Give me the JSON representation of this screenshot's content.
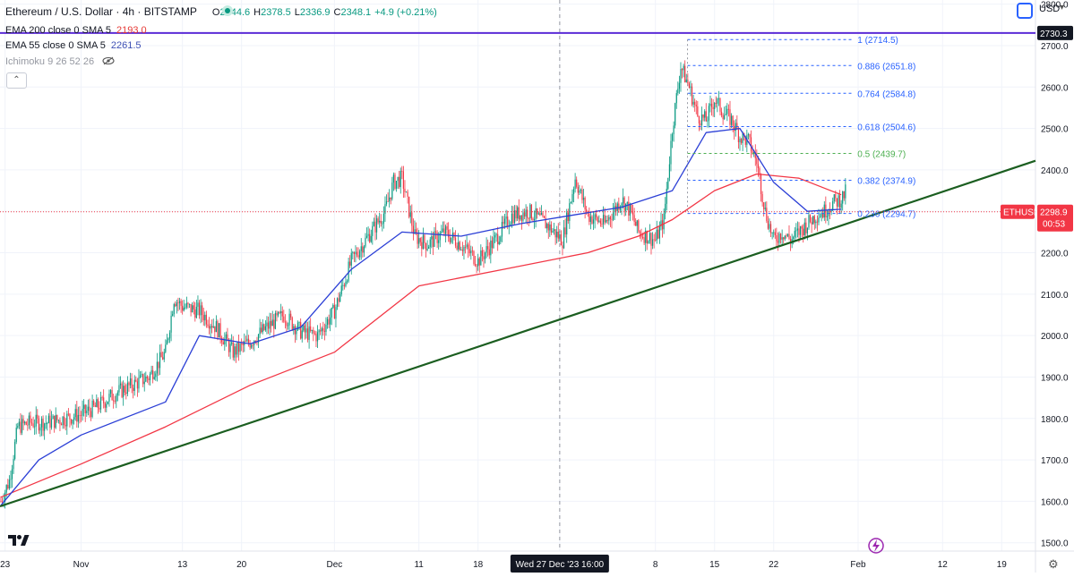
{
  "header": {
    "title": "Ethereum / U.S. Dollar · 4h · BITSTAMP",
    "ohlc": [
      {
        "k": "O",
        "v": "2344.6"
      },
      {
        "k": "H",
        "v": "2378.5"
      },
      {
        "k": "L",
        "v": "2336.9"
      },
      {
        "k": "C",
        "v": "2348.1"
      },
      {
        "k": "",
        "v": "+4.9 (+0.21%)"
      }
    ],
    "ema200_label": "EMA 200 close 0 SMA 5",
    "ema200_value": "2193.0",
    "ema55_label": "EMA 55 close 0 SMA 5",
    "ema55_value": "2261.5",
    "ichimoku_label": "Ichimoku 9 26 52 26",
    "currency": "USD"
  },
  "colors": {
    "up": "#089981",
    "down": "#f23645",
    "ema200": "#f23645",
    "ema55": "#2b3fd6",
    "trendline": "#1b5e20",
    "resistance": "#5b2bd6",
    "fib": "#2962ff",
    "fib_half": "#4caf50"
  },
  "chart_data": {
    "type": "candlestick",
    "symbol": "ETHUSD",
    "interval": "4h",
    "exchange": "BITSTAMP",
    "ylim": [
      1480,
      2810
    ],
    "y_ticks": [
      1500,
      1600,
      1700,
      1800,
      1900,
      2000,
      2100,
      2200,
      2300,
      2400,
      2500,
      2600,
      2700,
      2800
    ],
    "x_ticks": [
      "23",
      "Nov",
      "13",
      "20",
      "Dec",
      "11",
      "18",
      "Wed 27 Dec '23  16:00",
      "8",
      "15",
      "22",
      "Feb",
      "12",
      "19"
    ],
    "x_tick_days": [
      -9,
      0,
      12,
      19,
      30,
      40,
      47,
      56.67,
      68,
      75,
      82,
      92,
      102,
      109
    ],
    "x_range_days": [
      -9.6,
      113
    ],
    "crosshair_day": 56.67,
    "close_path": [
      [
        -9.5,
        1600
      ],
      [
        -8.5,
        1650
      ],
      [
        -7.5,
        1780
      ],
      [
        -6,
        1790
      ],
      [
        -4,
        1790
      ],
      [
        -2,
        1800
      ],
      [
        0,
        1810
      ],
      [
        2,
        1830
      ],
      [
        4,
        1860
      ],
      [
        6,
        1880
      ],
      [
        8,
        1900
      ],
      [
        10,
        1960
      ],
      [
        11,
        2090
      ],
      [
        12,
        2070
      ],
      [
        14,
        2060
      ],
      [
        16,
        2020
      ],
      [
        18,
        1960
      ],
      [
        20,
        1985
      ],
      [
        22,
        2020
      ],
      [
        24,
        2050
      ],
      [
        26,
        2010
      ],
      [
        28,
        2000
      ],
      [
        30,
        2060
      ],
      [
        32,
        2180
      ],
      [
        34,
        2240
      ],
      [
        36,
        2300
      ],
      [
        37,
        2370
      ],
      [
        38,
        2380
      ],
      [
        39.5,
        2240
      ],
      [
        41,
        2220
      ],
      [
        43,
        2250
      ],
      [
        45,
        2220
      ],
      [
        47,
        2180
      ],
      [
        49,
        2230
      ],
      [
        51,
        2290
      ],
      [
        53,
        2300
      ],
      [
        55,
        2270
      ],
      [
        57,
        2230
      ],
      [
        58.5,
        2380
      ],
      [
        60,
        2290
      ],
      [
        62,
        2270
      ],
      [
        64,
        2330
      ],
      [
        65,
        2300
      ],
      [
        66,
        2250
      ],
      [
        68,
        2230
      ],
      [
        69,
        2280
      ],
      [
        70,
        2500
      ],
      [
        71,
        2650
      ],
      [
        72,
        2600
      ],
      [
        73,
        2530
      ],
      [
        74,
        2520
      ],
      [
        75,
        2570
      ],
      [
        76,
        2540
      ],
      [
        77,
        2520
      ],
      [
        78,
        2480
      ],
      [
        79,
        2470
      ],
      [
        80,
        2420
      ],
      [
        81,
        2300
      ],
      [
        82,
        2230
      ],
      [
        83,
        2250
      ],
      [
        84,
        2230
      ],
      [
        85,
        2250
      ],
      [
        86,
        2270
      ],
      [
        87,
        2290
      ],
      [
        88,
        2300
      ],
      [
        89,
        2320
      ],
      [
        90,
        2330
      ],
      [
        90.6,
        2348.1
      ]
    ],
    "series": [
      {
        "name": "EMA 200 close 0 SMA 5",
        "points": [
          [
            -9.5,
            1610
          ],
          [
            0,
            1690
          ],
          [
            10,
            1780
          ],
          [
            20,
            1880
          ],
          [
            30,
            1960
          ],
          [
            40,
            2120
          ],
          [
            50,
            2160
          ],
          [
            60,
            2200
          ],
          [
            66,
            2240
          ],
          [
            70,
            2280
          ],
          [
            75,
            2350
          ],
          [
            80,
            2390
          ],
          [
            85,
            2380
          ],
          [
            90,
            2340
          ]
        ]
      },
      {
        "name": "EMA 55 close 0 SMA 5",
        "points": [
          [
            -9.5,
            1590
          ],
          [
            -5,
            1700
          ],
          [
            0,
            1760
          ],
          [
            10,
            1840
          ],
          [
            14,
            2000
          ],
          [
            20,
            1980
          ],
          [
            26,
            2020
          ],
          [
            32,
            2160
          ],
          [
            38,
            2250
          ],
          [
            45,
            2240
          ],
          [
            52,
            2270
          ],
          [
            58,
            2290
          ],
          [
            64,
            2310
          ],
          [
            70,
            2350
          ],
          [
            74,
            2490
          ],
          [
            78,
            2500
          ],
          [
            82,
            2370
          ],
          [
            86,
            2300
          ],
          [
            90,
            2305
          ]
        ]
      }
    ],
    "trendline": {
      "start": [
        -9.6,
        1588
      ],
      "end": [
        113,
        2422
      ]
    },
    "horizontal_line": {
      "value": 2730.3,
      "label": "2730.3"
    },
    "price_tag": {
      "symbol": "ETHUSD",
      "value": "2298.9",
      "countdown": "00:53"
    },
    "fib_retracement": {
      "levels": [
        {
          "ratio": "1",
          "value": 2714.5
        },
        {
          "ratio": "0.886",
          "value": 2651.8
        },
        {
          "ratio": "0.764",
          "value": 2584.8
        },
        {
          "ratio": "0.618",
          "value": 2504.6
        },
        {
          "ratio": "0.5",
          "value": 2439.7
        },
        {
          "ratio": "0.382",
          "value": 2374.9
        },
        {
          "ratio": "0.236",
          "value": 2294.7
        }
      ]
    }
  }
}
